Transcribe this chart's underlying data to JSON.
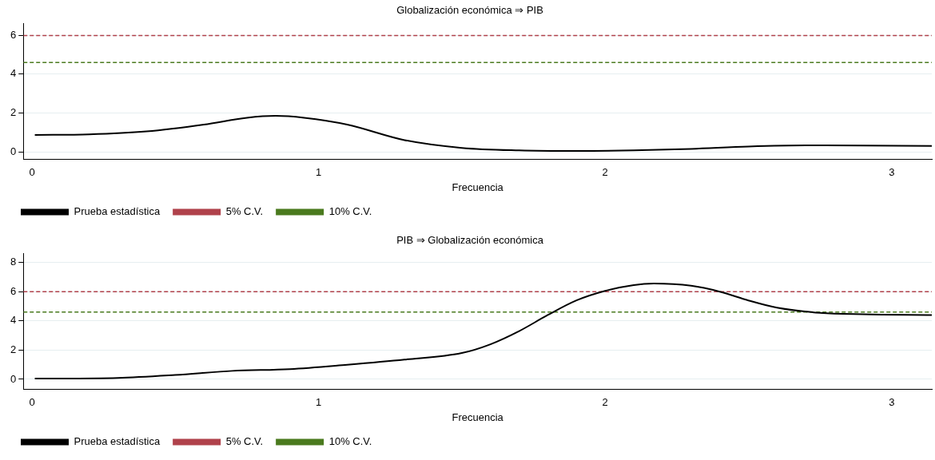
{
  "chart_data": [
    {
      "type": "line",
      "title": "Globalización económica ⇒ PIB",
      "xlabel": "Frecuencia",
      "xlim": [
        -0.03,
        3.14
      ],
      "xticks": [
        0,
        1,
        2,
        3
      ],
      "ylim": [
        -0.4,
        6.6
      ],
      "yticks": [
        0,
        2,
        4,
        6
      ],
      "grid": "y",
      "legend": "bottom left",
      "marker": "none",
      "series": [
        {
          "name": "Prueba estadística",
          "color": "#000000",
          "line_style": "solid",
          "x": [
            0.01,
            0.2,
            0.4,
            0.6,
            0.75,
            0.85,
            0.95,
            1.1,
            1.3,
            1.5,
            1.7,
            1.9,
            2.1,
            2.3,
            2.5,
            2.7,
            2.9,
            3.14
          ],
          "values": [
            0.87,
            0.9,
            1.05,
            1.4,
            1.75,
            1.85,
            1.75,
            1.4,
            0.6,
            0.2,
            0.07,
            0.04,
            0.07,
            0.15,
            0.27,
            0.33,
            0.32,
            0.3
          ]
        },
        {
          "name": "5% C.V.",
          "color": "#b0414b",
          "line_style": "dashed",
          "x": [
            -0.03,
            3.14
          ],
          "values": [
            5.99,
            5.99
          ]
        },
        {
          "name": "10% C.V.",
          "color": "#4a7a1e",
          "line_style": "dashed",
          "x": [
            -0.03,
            3.14
          ],
          "values": [
            4.6,
            4.6
          ]
        }
      ]
    },
    {
      "type": "line",
      "title": "PIB ⇒ Globalización económica",
      "xlabel": "Frecuencia",
      "xlim": [
        -0.03,
        3.14
      ],
      "xticks": [
        0,
        1,
        2,
        3
      ],
      "ylim": [
        -0.7,
        8.6
      ],
      "yticks": [
        0,
        2,
        4,
        6,
        8
      ],
      "grid": "y",
      "legend": "bottom left",
      "marker": "none",
      "series": [
        {
          "name": "Prueba estadística",
          "color": "#000000",
          "line_style": "solid",
          "x": [
            0.01,
            0.3,
            0.5,
            0.7,
            0.9,
            1.1,
            1.3,
            1.5,
            1.6,
            1.7,
            1.8,
            1.9,
            2.0,
            2.1,
            2.17,
            2.3,
            2.4,
            2.5,
            2.6,
            2.75,
            2.9,
            3.14
          ],
          "values": [
            0.05,
            0.1,
            0.3,
            0.58,
            0.7,
            1.0,
            1.35,
            1.8,
            2.4,
            3.3,
            4.4,
            5.4,
            6.05,
            6.45,
            6.55,
            6.4,
            6.0,
            5.4,
            4.9,
            4.55,
            4.45,
            4.4
          ]
        },
        {
          "name": "5% C.V.",
          "color": "#b0414b",
          "line_style": "dashed",
          "x": [
            -0.03,
            3.14
          ],
          "values": [
            5.99,
            5.99
          ]
        },
        {
          "name": "10% C.V.",
          "color": "#4a7a1e",
          "line_style": "dashed",
          "x": [
            -0.03,
            3.14
          ],
          "values": [
            4.6,
            4.6
          ]
        }
      ]
    }
  ]
}
